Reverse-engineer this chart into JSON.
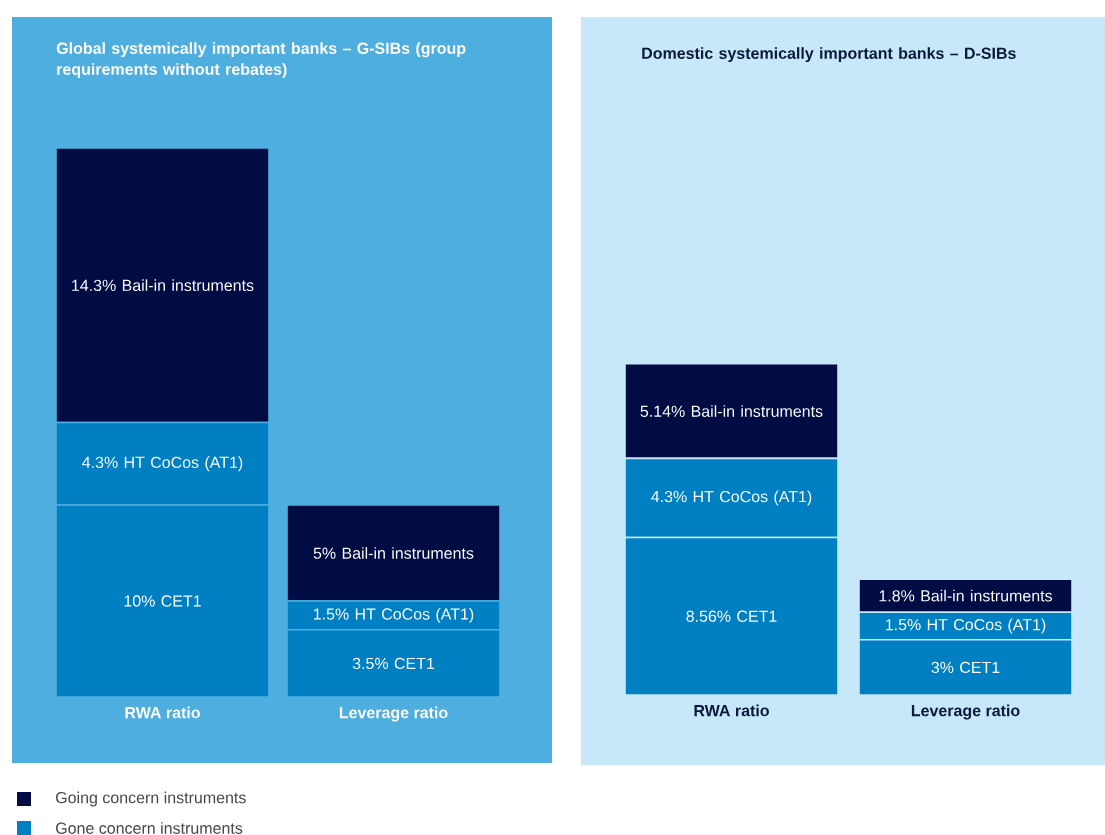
{
  "chart_data": [
    {
      "type": "bar",
      "title": "Global systemically important banks – G-SIBs (group requirements without rebates)",
      "stacked": true,
      "categories": [
        "RWA ratio",
        "Leverage ratio"
      ],
      "legend": "bottom left",
      "series": [
        {
          "name": "Gone concern instruments",
          "color": "#0080c3",
          "values": [
            10,
            3.5
          ],
          "value_labels": [
            "10% CET1",
            "3.5% CET1"
          ]
        },
        {
          "color": "#0080c3",
          "values": [
            4.3,
            1.5
          ],
          "value_labels": [
            "4.3% HT CoCos (AT1)",
            "1.5% HT CoCos (AT1)"
          ]
        },
        {
          "name": "Going concern instruments",
          "color": "#010c45",
          "values": [
            14.3,
            5
          ],
          "value_labels": [
            "14.3% Bail-in instruments",
            "5% Bail-in instruments"
          ]
        }
      ]
    },
    {
      "type": "bar",
      "title": "Domestic systemically important banks – D-SIBs",
      "stacked": true,
      "categories": [
        "RWA ratio",
        "Leverage ratio"
      ],
      "series": [
        {
          "color": "#0080c3",
          "values": [
            8.56,
            3
          ],
          "value_labels": [
            "8.56% CET1",
            "3% CET1"
          ]
        },
        {
          "color": "#0080c3",
          "values": [
            4.3,
            1.5
          ],
          "value_labels": [
            "4.3% HT CoCos (AT1)",
            "1.5% HT CoCos (AT1)"
          ]
        },
        {
          "color": "#010c45",
          "values": [
            5.14,
            1.8
          ],
          "value_labels": [
            "5.14% Bail-in instruments",
            "1.8% Bail-in instruments"
          ]
        }
      ]
    }
  ]
}
